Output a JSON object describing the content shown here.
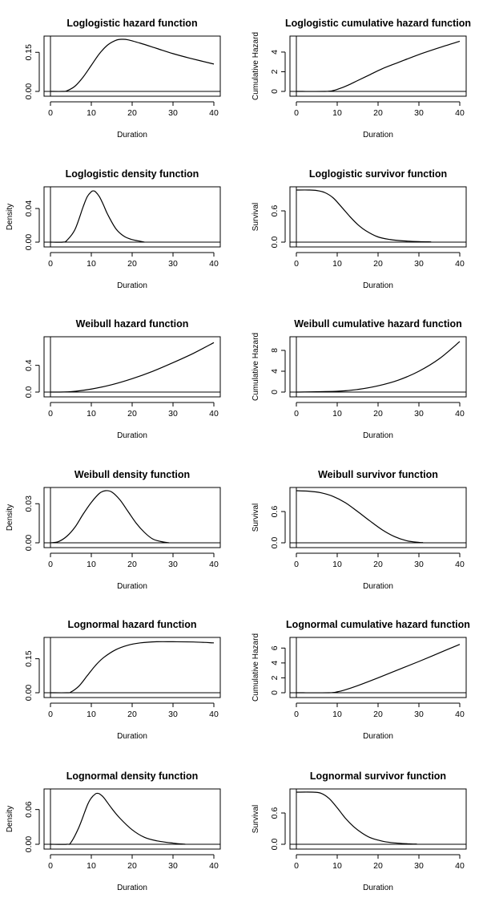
{
  "chart_data": [
    {
      "type": "line",
      "title": "Loglogistic hazard function",
      "xlabel": "Duration",
      "ylabel": "",
      "xlim": [
        0,
        40
      ],
      "ylim": [
        0,
        0.2
      ],
      "xticks": [
        "0",
        "10",
        "20",
        "30",
        "40"
      ],
      "yticks": [
        {
          "v": 0.0,
          "label": "0.00"
        },
        {
          "v": 0.15,
          "label": "0.15"
        }
      ],
      "x": [
        0,
        3,
        4,
        6,
        8,
        10,
        12,
        14,
        16,
        17.5,
        19,
        22,
        26,
        30,
        34,
        40
      ],
      "y": [
        0,
        0,
        0.002,
        0.02,
        0.055,
        0.1,
        0.145,
        0.178,
        0.196,
        0.2,
        0.198,
        0.185,
        0.165,
        0.145,
        0.128,
        0.105
      ]
    },
    {
      "type": "line",
      "title": "Loglogistic cumulative hazard function",
      "xlabel": "Duration",
      "ylabel": "Cumulative Hazard",
      "xlim": [
        0,
        40
      ],
      "ylim": [
        0,
        5.3
      ],
      "xticks": [
        "0",
        "10",
        "20",
        "30",
        "40"
      ],
      "yticks": [
        {
          "v": 0,
          "label": "0"
        },
        {
          "v": 2,
          "label": "2"
        },
        {
          "v": 4,
          "label": "4"
        }
      ],
      "x": [
        0,
        7,
        9,
        11,
        13,
        15,
        18,
        21,
        25,
        30,
        35,
        40
      ],
      "y": [
        0,
        0,
        0.08,
        0.35,
        0.7,
        1.1,
        1.7,
        2.3,
        2.95,
        3.75,
        4.45,
        5.1
      ]
    },
    {
      "type": "line",
      "title": "Loglogistic density function",
      "xlabel": "Duration",
      "ylabel": "Density",
      "xlim": [
        0,
        40
      ],
      "ylim": [
        0,
        0.062
      ],
      "xticks": [
        "0",
        "10",
        "20",
        "30",
        "40"
      ],
      "yticks": [
        {
          "v": 0.0,
          "label": "0.00"
        },
        {
          "v": 0.04,
          "label": "0.04"
        }
      ],
      "x": [
        0,
        3,
        4,
        6,
        8,
        9,
        10,
        10.5,
        11,
        12,
        13,
        14,
        16,
        18,
        20,
        22,
        23
      ],
      "y": [
        0,
        0,
        0.002,
        0.015,
        0.042,
        0.054,
        0.06,
        0.061,
        0.06,
        0.054,
        0.044,
        0.033,
        0.016,
        0.007,
        0.003,
        0.001,
        0
      ]
    },
    {
      "type": "line",
      "title": "Loglogistic survivor function",
      "xlabel": "Duration",
      "ylabel": "Survival",
      "xlim": [
        0,
        40
      ],
      "ylim": [
        0,
        1.0
      ],
      "xticks": [
        "0",
        "10",
        "20",
        "30",
        "40"
      ],
      "yticks": [
        {
          "v": 0.0,
          "label": "0.0"
        },
        {
          "v": 0.6,
          "label": "0.6"
        }
      ],
      "x": [
        0,
        3,
        5,
        7,
        9,
        11,
        13,
        15,
        17,
        20,
        23,
        26,
        30,
        33
      ],
      "y": [
        1,
        1,
        0.99,
        0.95,
        0.85,
        0.68,
        0.5,
        0.34,
        0.22,
        0.1,
        0.05,
        0.025,
        0.01,
        0.005
      ]
    },
    {
      "type": "line",
      "title": "Weibull hazard function",
      "xlabel": "Duration",
      "ylabel": "",
      "xlim": [
        0,
        40
      ],
      "ylim": [
        0,
        0.78
      ],
      "xticks": [
        "0",
        "10",
        "20",
        "30",
        "40"
      ],
      "yticks": [
        {
          "v": 0.0,
          "label": "0.0"
        },
        {
          "v": 0.4,
          "label": "0.4"
        }
      ],
      "x": [
        0,
        5,
        10,
        15,
        20,
        25,
        30,
        35,
        40
      ],
      "y": [
        0,
        0.006,
        0.045,
        0.11,
        0.2,
        0.31,
        0.44,
        0.58,
        0.74
      ]
    },
    {
      "type": "line",
      "title": "Weibull cumulative hazard function",
      "xlabel": "Duration",
      "ylabel": "Cumulative Hazard",
      "xlim": [
        0,
        40
      ],
      "ylim": [
        0,
        10
      ],
      "xticks": [
        "0",
        "10",
        "20",
        "30",
        "40"
      ],
      "yticks": [
        {
          "v": 0,
          "label": "0"
        },
        {
          "v": 4,
          "label": "4"
        },
        {
          "v": 8,
          "label": "8"
        }
      ],
      "x": [
        0,
        10,
        15,
        20,
        25,
        30,
        35,
        40
      ],
      "y": [
        0,
        0.15,
        0.5,
        1.2,
        2.3,
        4.0,
        6.4,
        9.7
      ]
    },
    {
      "type": "line",
      "title": "Weibull density function",
      "xlabel": "Duration",
      "ylabel": "Density",
      "xlim": [
        0,
        40
      ],
      "ylim": [
        0,
        0.04
      ],
      "xticks": [
        "0",
        "10",
        "20",
        "30",
        "40"
      ],
      "yticks": [
        {
          "v": 0.0,
          "label": "0.00"
        },
        {
          "v": 0.03,
          "label": "0.03"
        }
      ],
      "x": [
        0,
        2,
        4,
        6,
        8,
        10,
        12,
        13.5,
        15,
        17,
        19,
        21,
        23,
        25,
        27,
        29
      ],
      "y": [
        0,
        0.001,
        0.005,
        0.012,
        0.022,
        0.031,
        0.038,
        0.04,
        0.039,
        0.033,
        0.024,
        0.015,
        0.008,
        0.003,
        0.001,
        0
      ]
    },
    {
      "type": "line",
      "title": "Weibull survivor function",
      "xlabel": "Duration",
      "ylabel": "Survival",
      "xlim": [
        0,
        40
      ],
      "ylim": [
        0,
        1.0
      ],
      "xticks": [
        "0",
        "10",
        "20",
        "30",
        "40"
      ],
      "yticks": [
        {
          "v": 0.0,
          "label": "0.0"
        },
        {
          "v": 0.6,
          "label": "0.6"
        }
      ],
      "x": [
        0,
        3,
        6,
        9,
        12,
        15,
        18,
        21,
        24,
        27,
        30,
        31
      ],
      "y": [
        1,
        0.99,
        0.96,
        0.89,
        0.77,
        0.6,
        0.42,
        0.25,
        0.12,
        0.04,
        0.008,
        0.004
      ]
    },
    {
      "type": "line",
      "title": "Lognormal hazard function",
      "xlabel": "Duration",
      "ylabel": "",
      "xlim": [
        0,
        40
      ],
      "ylim": [
        0,
        0.23
      ],
      "xticks": [
        "0",
        "10",
        "20",
        "30",
        "40"
      ],
      "yticks": [
        {
          "v": 0.0,
          "label": "0.00"
        },
        {
          "v": 0.15,
          "label": "0.15"
        }
      ],
      "x": [
        0,
        4,
        5,
        7,
        9,
        11,
        13,
        16,
        19,
        22,
        26,
        30,
        35,
        40
      ],
      "y": [
        0,
        0,
        0.003,
        0.03,
        0.075,
        0.12,
        0.155,
        0.19,
        0.21,
        0.22,
        0.225,
        0.225,
        0.224,
        0.22
      ]
    },
    {
      "type": "line",
      "title": "Lognormal cumulative hazard function",
      "xlabel": "Duration",
      "ylabel": "Cumulative Hazard",
      "xlim": [
        0,
        40
      ],
      "ylim": [
        0,
        7
      ],
      "xticks": [
        "0",
        "10",
        "20",
        "30",
        "40"
      ],
      "yticks": [
        {
          "v": 0,
          "label": "0"
        },
        {
          "v": 2,
          "label": "2"
        },
        {
          "v": 4,
          "label": "4"
        },
        {
          "v": 6,
          "label": "6"
        }
      ],
      "x": [
        0,
        8,
        10,
        12,
        15,
        20,
        25,
        30,
        35,
        40
      ],
      "y": [
        0,
        0,
        0.12,
        0.4,
        0.95,
        2.0,
        3.1,
        4.2,
        5.35,
        6.5
      ]
    },
    {
      "type": "line",
      "title": "Lognormal density function",
      "xlabel": "Duration",
      "ylabel": "Density",
      "xlim": [
        0,
        40
      ],
      "ylim": [
        0,
        0.09
      ],
      "xticks": [
        "0",
        "10",
        "20",
        "30",
        "40"
      ],
      "yticks": [
        {
          "v": 0.0,
          "label": "0.00"
        },
        {
          "v": 0.06,
          "label": "0.06"
        }
      ],
      "x": [
        0,
        4,
        5,
        7,
        9,
        10,
        11,
        11.5,
        12,
        13,
        15,
        17,
        20,
        23,
        26,
        30,
        33
      ],
      "y": [
        0,
        0,
        0.003,
        0.03,
        0.067,
        0.08,
        0.087,
        0.088,
        0.087,
        0.081,
        0.062,
        0.045,
        0.025,
        0.012,
        0.006,
        0.002,
        0
      ]
    },
    {
      "type": "line",
      "title": "Lognormal survivor function",
      "xlabel": "Duration",
      "ylabel": "Survival",
      "xlim": [
        0,
        40
      ],
      "ylim": [
        0,
        1.0
      ],
      "xticks": [
        "0",
        "10",
        "20",
        "30",
        "40"
      ],
      "yticks": [
        {
          "v": 0.0,
          "label": "0.0"
        },
        {
          "v": 0.6,
          "label": "0.6"
        }
      ],
      "x": [
        0,
        4,
        6,
        8,
        10,
        12,
        14,
        16,
        18,
        20,
        22,
        25,
        28,
        29.5
      ],
      "y": [
        1,
        1,
        0.98,
        0.88,
        0.7,
        0.5,
        0.34,
        0.22,
        0.13,
        0.08,
        0.045,
        0.02,
        0.007,
        0.004
      ]
    }
  ]
}
